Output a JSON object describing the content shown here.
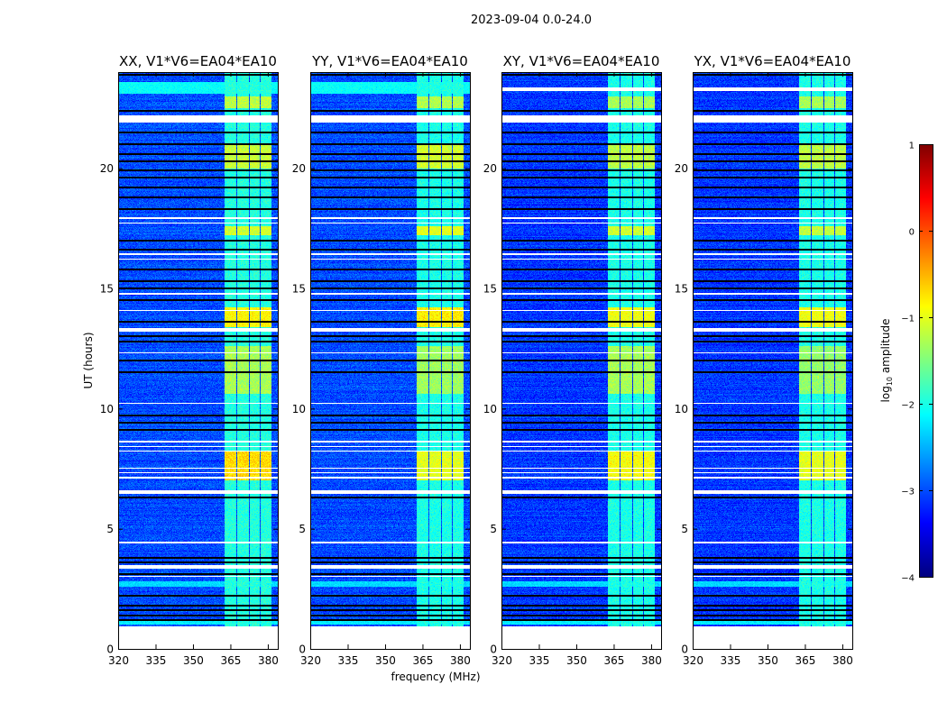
{
  "chart_data": {
    "type": "heatmap",
    "title": "2023-09-04 0.0-24.0",
    "xlabel": "frequency (MHz)",
    "ylabel": "UT (hours)",
    "xlim": [
      320,
      384
    ],
    "ylim": [
      0,
      24
    ],
    "xticks": [
      320,
      335,
      350,
      365,
      380
    ],
    "yticks": [
      0,
      5,
      10,
      15,
      20
    ],
    "panels": [
      {
        "title": "XX, V1*V6=EA04*EA10",
        "pol": "XX",
        "background": -3.0,
        "signal_default": -1.95,
        "event_levels": [
          -0.7,
          -1.3,
          -0.85,
          -1.1,
          -1.15,
          -1.2
        ]
      },
      {
        "title": "YY, V1*V6=EA04*EA10",
        "pol": "YY",
        "background": -3.0,
        "signal_default": -2.0,
        "event_levels": [
          -1.0,
          -1.35,
          -0.8,
          -1.0,
          -1.1,
          -1.25
        ]
      },
      {
        "title": "XY, V1*V6=EA04*EA10",
        "pol": "XY",
        "background": -3.1,
        "signal_default": -2.0,
        "event_levels": [
          -0.9,
          -1.3,
          -0.95,
          -1.1,
          -1.2,
          -1.3
        ]
      },
      {
        "title": "YX, V1*V6=EA04*EA10",
        "pol": "YX",
        "background": -3.1,
        "signal_default": -2.0,
        "event_levels": [
          -1.0,
          -1.4,
          -0.95,
          -1.15,
          -1.2,
          -1.3
        ]
      }
    ],
    "signal_subbands_mhz": [
      [
        362.5,
        367.3
      ],
      [
        367.9,
        372.3
      ],
      [
        372.9,
        376.6
      ],
      [
        377.2,
        381.3
      ]
    ],
    "signal_events_hours": [
      [
        7.0,
        8.2
      ],
      [
        10.6,
        12.6
      ],
      [
        13.4,
        14.2
      ],
      [
        17.2,
        17.6
      ],
      [
        20.0,
        21.0
      ],
      [
        22.5,
        23.0
      ]
    ],
    "broadband_bright_rows_hours": [
      [
        23.1,
        23.6,
        -2.1
      ],
      [
        2.6,
        2.8,
        -2.3
      ],
      [
        1.0,
        1.15,
        -2.2
      ]
    ],
    "flagged_hours": [
      [
        0,
        0.95
      ],
      [
        3.0,
        3.05
      ],
      [
        3.35,
        3.5
      ],
      [
        4.4,
        4.48
      ],
      [
        6.45,
        6.6
      ],
      [
        7.1,
        7.15
      ],
      [
        7.3,
        7.35
      ],
      [
        7.5,
        7.55
      ],
      [
        8.2,
        8.25
      ],
      [
        8.4,
        8.45
      ],
      [
        8.6,
        8.65
      ],
      [
        10.2,
        10.25
      ],
      [
        12.3,
        12.35
      ],
      [
        13.2,
        13.35
      ],
      [
        14.05,
        14.1
      ],
      [
        14.75,
        14.8
      ],
      [
        16.2,
        16.25
      ],
      [
        16.4,
        16.45
      ],
      [
        17.7,
        17.75
      ],
      [
        17.9,
        17.95
      ],
      [
        21.9,
        22.2
      ]
    ],
    "dropout_hours": [
      23.9,
      22.4,
      21.5,
      21.0,
      20.6,
      20.3,
      19.9,
      19.6,
      19.2,
      18.8,
      18.3,
      17.0,
      16.6,
      15.8,
      15.3,
      15.0,
      14.5,
      13.6,
      13.0,
      12.8,
      12.0,
      11.5,
      9.7,
      9.4,
      9.1,
      6.3,
      3.8,
      3.6,
      3.1,
      2.2,
      1.8,
      1.6,
      1.4,
      1.2
    ],
    "colorbar": {
      "label": "log",
      "label_sub": "10",
      "label_rest": " amplitude",
      "range": [
        -4,
        1
      ],
      "ticks": [
        1,
        0,
        -1,
        -2,
        -3,
        -4
      ],
      "tick_labels": [
        "1",
        "0",
        "−1",
        "−2",
        "−3",
        "−4"
      ],
      "colormap": "jet"
    }
  }
}
